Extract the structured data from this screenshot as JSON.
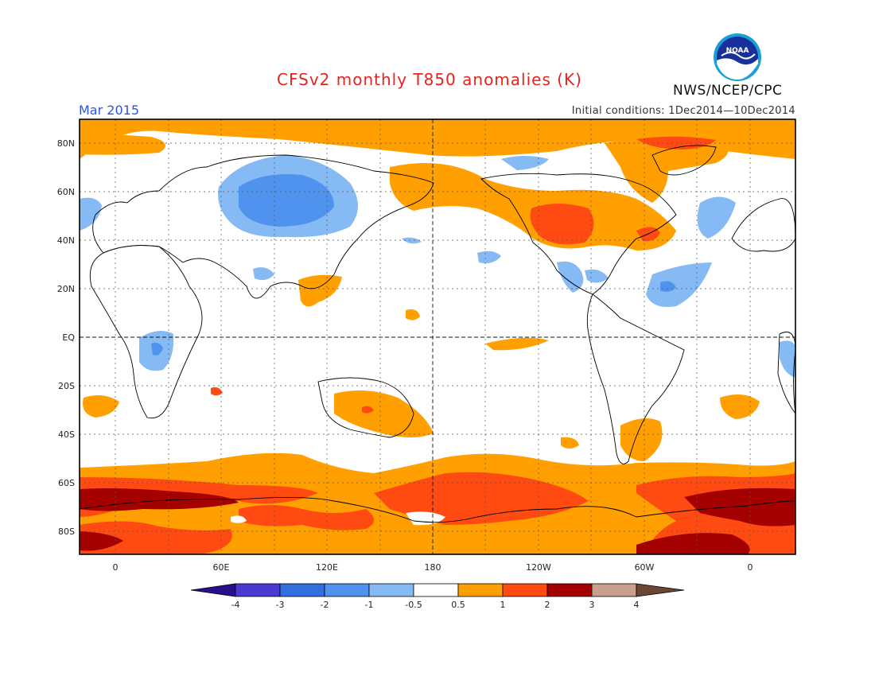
{
  "title": "CFSv2 monthly T850 anomalies (K)",
  "valid_month": "Mar 2015",
  "initial_conditions": "Initial conditions: 1Dec2014—10Dec2014",
  "organization": "NWS/NCEP/CPC",
  "logo_text": "NOAA",
  "map": {
    "lat_labels": [
      "80N",
      "60N",
      "40N",
      "20N",
      "EQ",
      "20S",
      "40S",
      "60S",
      "80S"
    ],
    "lon_labels": [
      "0",
      "60E",
      "120E",
      "180",
      "120W",
      "60W",
      "0"
    ]
  },
  "colorbar": {
    "levels": [
      "-4",
      "-3",
      "-2",
      "-1",
      "-0.5",
      "0.5",
      "1",
      "2",
      "3",
      "4"
    ],
    "colors": [
      "#2a0e8c",
      "#4a3ad0",
      "#2f6fe0",
      "#4f93ee",
      "#86baf4",
      "#ffffff",
      "#ffa000",
      "#ff4b12",
      "#a40000",
      "#c8a08c",
      "#6b4634"
    ]
  }
}
